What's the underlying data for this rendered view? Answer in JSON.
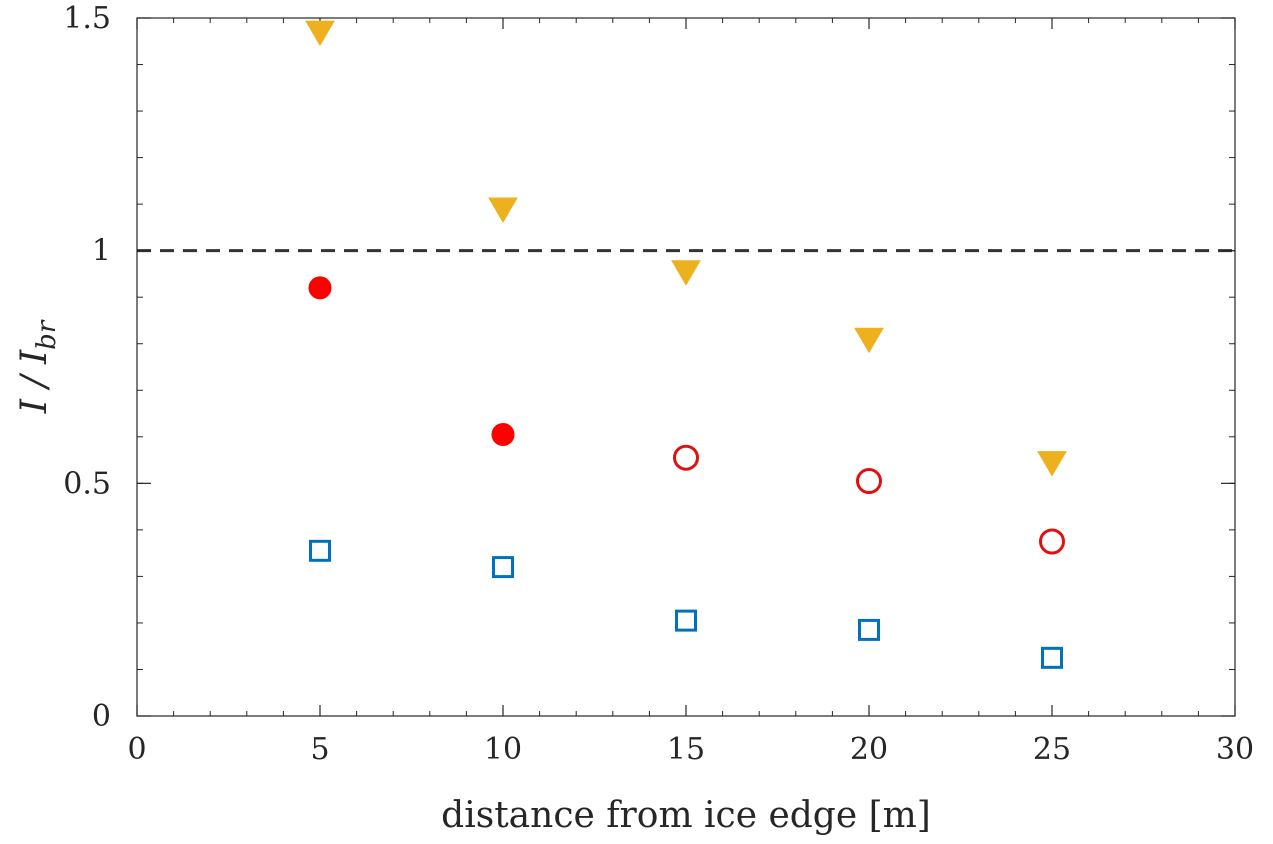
{
  "chart_data": {
    "type": "scatter",
    "xlabel": "distance from ice edge [m]",
    "ylabel": {
      "main": "I / I",
      "subscript": "br"
    },
    "xlim": [
      0,
      30
    ],
    "ylim": [
      0,
      1.5
    ],
    "x_ticks": [
      0,
      5,
      10,
      15,
      20,
      25,
      30
    ],
    "x_tick_labels": [
      "0",
      "5",
      "10",
      "15",
      "20",
      "25",
      "30"
    ],
    "y_ticks": [
      0,
      0.5,
      1,
      1.5
    ],
    "y_tick_labels": [
      "0",
      "0.5",
      "1",
      "1.5"
    ],
    "grid": false,
    "reference_line": {
      "y": 1,
      "style": "dashed",
      "color": "#333333"
    },
    "series": [
      {
        "marker": "triangle-down",
        "filled": true,
        "color": "#EDB120",
        "points": [
          [
            5,
            1.47
          ],
          [
            10,
            1.09
          ],
          [
            15,
            0.955
          ],
          [
            20,
            0.81
          ],
          [
            25,
            0.545
          ]
        ]
      },
      {
        "marker": "circle",
        "filled": true,
        "color": "#FF0000",
        "points": [
          [
            5,
            0.92
          ],
          [
            10,
            0.605
          ]
        ]
      },
      {
        "marker": "circle",
        "filled": false,
        "color": "#E01010",
        "points": [
          [
            15,
            0.555
          ],
          [
            20,
            0.505
          ],
          [
            25,
            0.375
          ]
        ]
      },
      {
        "marker": "square",
        "filled": false,
        "color": "#0072BD",
        "points": [
          [
            5,
            0.355
          ],
          [
            10,
            0.32
          ],
          [
            15,
            0.205
          ],
          [
            20,
            0.185
          ],
          [
            25,
            0.125
          ]
        ]
      }
    ]
  }
}
